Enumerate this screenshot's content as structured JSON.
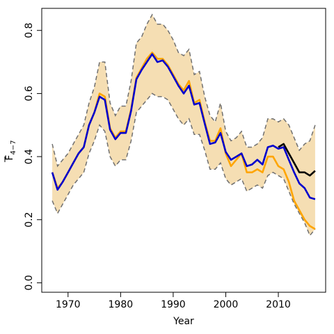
{
  "chart_data": {
    "type": "line",
    "title": "",
    "xlabel": "Year",
    "ylabel_main": "F",
    "ylabel_sub": "4−7",
    "xlim": [
      1965,
      2019
    ],
    "ylim": [
      -0.03,
      0.87
    ],
    "xticks": [
      1970,
      1980,
      1990,
      2000,
      2010
    ],
    "yticks": [
      0.0,
      0.2,
      0.4,
      0.6,
      0.8
    ],
    "xtick_labels": [
      "1970",
      "1980",
      "1990",
      "2000",
      "2010"
    ],
    "ytick_labels": [
      "0.0",
      "0.2",
      "0.4",
      "0.6",
      "0.8"
    ],
    "grid": false,
    "colors": {
      "band_fill": "#f5deb3",
      "band_edge": "#707070",
      "orange": "#ffa500",
      "blue": "#0000cd",
      "black": "#000000"
    },
    "band": {
      "x": [
        1967,
        1968,
        1969,
        1970,
        1971,
        1972,
        1973,
        1974,
        1975,
        1976,
        1977,
        1978,
        1979,
        1980,
        1981,
        1982,
        1983,
        1984,
        1985,
        1986,
        1987,
        1988,
        1989,
        1990,
        1991,
        1992,
        1993,
        1994,
        1995,
        1996,
        1997,
        1998,
        1999,
        2000,
        2001,
        2002,
        2003,
        2004,
        2005,
        2006,
        2007,
        2008,
        2009,
        2010,
        2011,
        2012,
        2013,
        2014,
        2015,
        2016,
        2017
      ],
      "upper": [
        0.44,
        0.37,
        0.39,
        0.41,
        0.44,
        0.47,
        0.5,
        0.57,
        0.62,
        0.7,
        0.7,
        0.57,
        0.53,
        0.56,
        0.56,
        0.64,
        0.76,
        0.78,
        0.82,
        0.85,
        0.82,
        0.82,
        0.8,
        0.77,
        0.73,
        0.72,
        0.74,
        0.66,
        0.67,
        0.59,
        0.53,
        0.51,
        0.57,
        0.48,
        0.45,
        0.46,
        0.48,
        0.43,
        0.43,
        0.44,
        0.46,
        0.52,
        0.52,
        0.51,
        0.52,
        0.5,
        0.46,
        0.42,
        0.44,
        0.45,
        0.5
      ],
      "lower": [
        0.26,
        0.22,
        0.25,
        0.28,
        0.31,
        0.33,
        0.35,
        0.41,
        0.45,
        0.5,
        0.48,
        0.4,
        0.37,
        0.39,
        0.39,
        0.45,
        0.54,
        0.56,
        0.58,
        0.6,
        0.59,
        0.59,
        0.58,
        0.55,
        0.52,
        0.5,
        0.52,
        0.47,
        0.47,
        0.42,
        0.36,
        0.36,
        0.38,
        0.33,
        0.31,
        0.32,
        0.33,
        0.29,
        0.3,
        0.31,
        0.3,
        0.34,
        0.35,
        0.34,
        0.33,
        0.29,
        0.25,
        0.22,
        0.19,
        0.15,
        0.17
      ]
    },
    "series": [
      {
        "color": "orange",
        "x": [
          1967,
          1968,
          1969,
          1970,
          1971,
          1972,
          1973,
          1974,
          1975,
          1976,
          1977,
          1978,
          1979,
          1980,
          1981,
          1982,
          1983,
          1984,
          1985,
          1986,
          1987,
          1988,
          1989,
          1990,
          1991,
          1992,
          1993,
          1994,
          1995,
          1996,
          1997,
          1998,
          1999,
          2000,
          2001,
          2002,
          2003,
          2004,
          2005,
          2006,
          2007,
          2008,
          2009,
          2010,
          2011,
          2012,
          2013,
          2014,
          2015,
          2016,
          2017
        ],
        "values": [
          0.35,
          0.3,
          0.32,
          0.35,
          0.38,
          0.41,
          0.43,
          0.5,
          0.54,
          0.6,
          0.59,
          0.49,
          0.46,
          0.48,
          0.48,
          0.55,
          0.65,
          0.68,
          0.71,
          0.73,
          0.71,
          0.71,
          0.69,
          0.66,
          0.63,
          0.61,
          0.64,
          0.57,
          0.58,
          0.51,
          0.45,
          0.45,
          0.49,
          0.41,
          0.37,
          0.39,
          0.41,
          0.35,
          0.35,
          0.36,
          0.35,
          0.4,
          0.4,
          0.37,
          0.36,
          0.32,
          0.26,
          0.23,
          0.2,
          0.18,
          0.17
        ]
      },
      {
        "color": "black",
        "x": [
          2010,
          2011,
          2012,
          2013,
          2014,
          2015,
          2016,
          2017
        ],
        "values": [
          0.43,
          0.44,
          0.41,
          0.38,
          0.35,
          0.35,
          0.34,
          0.355
        ]
      },
      {
        "color": "blue",
        "x": [
          1967,
          1968,
          1969,
          1970,
          1971,
          1972,
          1973,
          1974,
          1975,
          1976,
          1977,
          1978,
          1979,
          1980,
          1981,
          1982,
          1983,
          1984,
          1985,
          1986,
          1987,
          1988,
          1989,
          1990,
          1991,
          1992,
          1993,
          1994,
          1995,
          1996,
          1997,
          1998,
          1999,
          2000,
          2001,
          2002,
          2003,
          2004,
          2005,
          2006,
          2007,
          2008,
          2009,
          2010,
          2011,
          2012,
          2013,
          2014,
          2015,
          2016,
          2017
        ],
        "values": [
          0.35,
          0.295,
          0.32,
          0.35,
          0.38,
          0.41,
          0.43,
          0.5,
          0.54,
          0.59,
          0.58,
          0.485,
          0.455,
          0.475,
          0.475,
          0.545,
          0.645,
          0.675,
          0.7,
          0.725,
          0.7,
          0.705,
          0.685,
          0.655,
          0.625,
          0.6,
          0.625,
          0.565,
          0.57,
          0.505,
          0.44,
          0.445,
          0.475,
          0.415,
          0.39,
          0.4,
          0.41,
          0.37,
          0.375,
          0.39,
          0.375,
          0.43,
          0.435,
          0.425,
          0.43,
          0.39,
          0.35,
          0.315,
          0.3,
          0.27,
          0.265
        ]
      }
    ]
  }
}
